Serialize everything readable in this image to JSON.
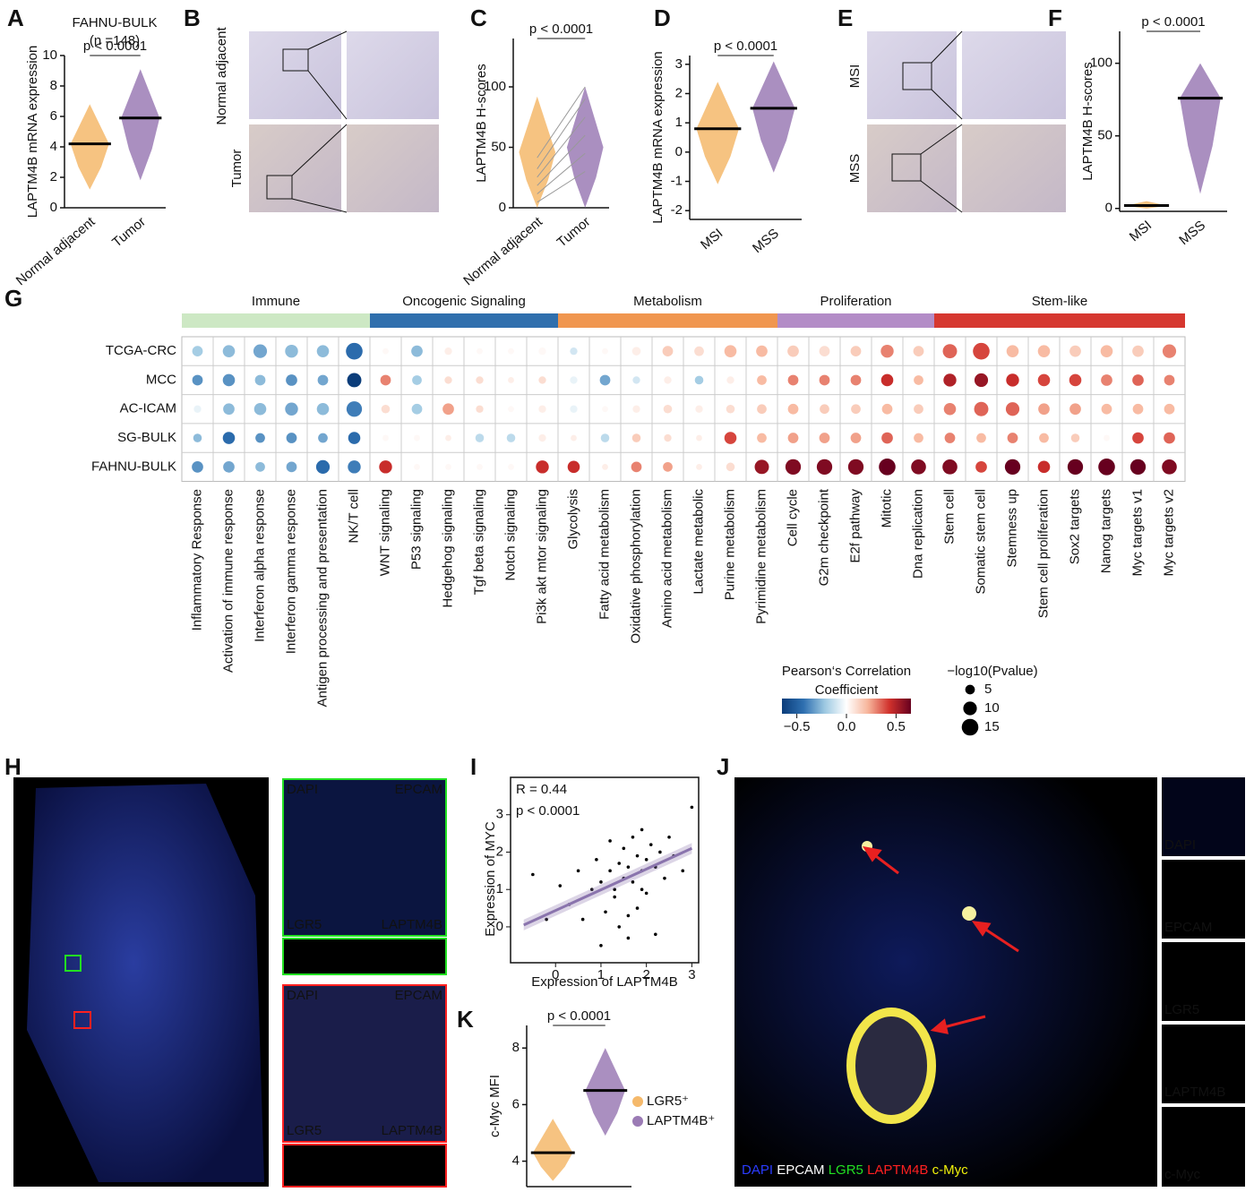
{
  "panel_labels": [
    "A",
    "B",
    "C",
    "D",
    "E",
    "F",
    "G",
    "H",
    "I",
    "J",
    "K"
  ],
  "images": {
    "B": [
      "Normal adjacent",
      "Tumor"
    ],
    "E": [
      "MSI",
      "MSS"
    ]
  },
  "channels": [
    {
      "name": "DAPI",
      "color": "#2b3cff"
    },
    {
      "name": "EPCAM",
      "color": "#ffffff"
    },
    {
      "name": "LGR5",
      "color": "#22e022"
    },
    {
      "name": "LAPTM4B",
      "color": "#ff2020"
    },
    {
      "name": "c-Myc",
      "color": "#f2f20a"
    }
  ],
  "chart_data": [
    {
      "type": "swarm",
      "title": "FAHNU-BULK",
      "subtitle": "(n =148)",
      "annotation": "p < 0.0001",
      "ylabel": "LAPTM4B mRNA expression",
      "categories": [
        "Normal adjacent",
        "Tumor"
      ],
      "colors": [
        "#f5b96b",
        "#9b7bb5"
      ],
      "medians": [
        4.2,
        5.9
      ],
      "ranges": [
        [
          1.2,
          6.8
        ],
        [
          1.8,
          9.1
        ]
      ],
      "ylim": [
        0,
        10
      ],
      "yticks": [
        0,
        2,
        4,
        6,
        8,
        10
      ]
    },
    {
      "type": "paired",
      "annotation": "p < 0.0001",
      "ylabel": "LAPTM4B H-scores",
      "categories": [
        "Normal adjacent",
        "Tumor"
      ],
      "colors": [
        "#f5b96b",
        "#9b7bb5"
      ],
      "ranges": [
        [
          0,
          92
        ],
        [
          0,
          100
        ]
      ],
      "ylim": [
        0,
        140
      ],
      "yticks": [
        0,
        50,
        100
      ]
    },
    {
      "type": "swarm",
      "annotation": "p < 0.0001",
      "ylabel": "LAPTM4B mRNA expression",
      "categories": [
        "MSI",
        "MSS"
      ],
      "colors": [
        "#f5b96b",
        "#9b7bb5"
      ],
      "medians": [
        0.8,
        1.5
      ],
      "ranges": [
        [
          -1.1,
          2.4
        ],
        [
          -0.7,
          3.1
        ]
      ],
      "ylim": [
        -2.3,
        3.3
      ],
      "yticks": [
        -2,
        -1,
        0,
        1,
        2,
        3
      ]
    },
    {
      "type": "swarm",
      "annotation": "p < 0.0001",
      "ylabel": "LAPTM4B H-scores",
      "categories": [
        "MSI",
        "MSS"
      ],
      "colors": [
        "#f5b96b",
        "#9b7bb5"
      ],
      "medians": [
        2,
        76
      ],
      "ranges": [
        [
          0,
          5
        ],
        [
          10,
          100
        ]
      ],
      "ylim": [
        -2,
        122
      ],
      "yticks": [
        0,
        50,
        100
      ]
    },
    {
      "type": "dotplot",
      "groups": [
        {
          "name": "Immune",
          "color": "#cde8c4",
          "categories": [
            "Inflammatory Response",
            "Activation of immune response",
            "Interferon alpha response",
            "Interferon gamma response",
            "Antigen processing and presentation",
            "NK/T cell"
          ]
        },
        {
          "name": "Oncogenic Signaling",
          "color": "#2f6fad",
          "categories": [
            "WNT signaling",
            "P53 signaling",
            "Hedgehog signaling",
            "Tgf beta signaling",
            "Notch signaling",
            "Pi3k akt mtor signaling"
          ]
        },
        {
          "name": "Metabolism",
          "color": "#f0964f",
          "categories": [
            "Glycolysis",
            "Fatty acid metabolism",
            "Oxidative phosphorylation",
            "Amino acid metabolism",
            "Lactate metabolic",
            "Purine metabolism",
            "Pyrimidine metabolism"
          ]
        },
        {
          "name": "Proliferation",
          "color": "#b38cc7",
          "categories": [
            "Cell cycle",
            "G2m checkpoint",
            "E2f pathway",
            "Mitotic",
            "Dna replication"
          ]
        },
        {
          "name": "Stem-like",
          "color": "#d6372f",
          "categories": [
            "Stem cell",
            "Somatic stem cell",
            "Stemness up",
            "Stem cell proliferation",
            "Sox2 targets",
            "Nanog targets",
            "Myc targets v1",
            "Myc targets v2"
          ]
        }
      ],
      "series": [
        {
          "name": "TCGA-CRC",
          "values": [
            -0.2,
            -0.25,
            -0.3,
            -0.25,
            -0.25,
            -0.45,
            0.02,
            -0.25,
            0.05,
            0.02,
            0.02,
            0.02,
            -0.1,
            0.02,
            0.05,
            0.15,
            0.1,
            0.2,
            0.2,
            0.15,
            0.1,
            0.15,
            0.3,
            0.15,
            0.35,
            0.4,
            0.2,
            0.2,
            0.15,
            0.2,
            0.15,
            0.3
          ],
          "sizes": [
            6,
            8,
            10,
            9,
            8,
            15,
            2,
            7,
            3,
            2,
            2,
            3,
            3,
            2,
            4,
            6,
            5,
            8,
            7,
            7,
            6,
            6,
            9,
            6,
            11,
            15,
            8,
            8,
            7,
            8,
            7,
            10
          ]
        },
        {
          "name": "MCC",
          "values": [
            -0.35,
            -0.35,
            -0.25,
            -0.35,
            -0.3,
            -0.65,
            0.3,
            -0.2,
            0.1,
            0.1,
            0.05,
            0.1,
            -0.05,
            -0.3,
            -0.1,
            0.05,
            -0.2,
            0.05,
            0.2,
            0.3,
            0.3,
            0.3,
            0.45,
            0.2,
            0.5,
            0.55,
            0.45,
            0.4,
            0.4,
            0.3,
            0.35,
            0.3
          ],
          "sizes": [
            6,
            8,
            6,
            7,
            6,
            11,
            6,
            5,
            3,
            3,
            2,
            3,
            3,
            6,
            3,
            3,
            4,
            3,
            5,
            6,
            6,
            6,
            8,
            5,
            9,
            10,
            9,
            8,
            8,
            7,
            7,
            6
          ]
        },
        {
          "name": "AC-ICAM",
          "values": [
            -0.05,
            -0.25,
            -0.25,
            -0.3,
            -0.25,
            -0.4,
            0.1,
            -0.2,
            0.25,
            0.1,
            0.02,
            0.05,
            -0.05,
            0.02,
            0.05,
            0.1,
            0.05,
            0.1,
            0.15,
            0.2,
            0.15,
            0.15,
            0.2,
            0.15,
            0.3,
            0.35,
            0.35,
            0.25,
            0.25,
            0.2,
            0.2,
            0.2
          ],
          "sizes": [
            3,
            7,
            8,
            9,
            8,
            13,
            4,
            6,
            7,
            3,
            2,
            3,
            3,
            2,
            3,
            4,
            3,
            4,
            5,
            6,
            5,
            5,
            6,
            5,
            8,
            11,
            10,
            7,
            7,
            6,
            6,
            6
          ]
        },
        {
          "name": "SG-BULK",
          "values": [
            -0.25,
            -0.45,
            -0.35,
            -0.35,
            -0.3,
            -0.45,
            0.02,
            0.02,
            0.05,
            -0.15,
            -0.15,
            0.05,
            0.05,
            -0.15,
            0.15,
            0.1,
            0.05,
            0.4,
            0.2,
            0.25,
            0.25,
            0.25,
            0.35,
            0.2,
            0.3,
            0.2,
            0.3,
            0.2,
            0.15,
            0.02,
            0.4,
            0.35
          ],
          "sizes": [
            4,
            8,
            5,
            6,
            5,
            8,
            2,
            2,
            2,
            4,
            4,
            3,
            2,
            4,
            4,
            3,
            2,
            8,
            5,
            6,
            6,
            6,
            7,
            5,
            6,
            5,
            6,
            5,
            4,
            2,
            7,
            7
          ]
        },
        {
          "name": "FAHNU-BULK",
          "values": [
            -0.35,
            -0.3,
            -0.25,
            -0.3,
            -0.45,
            -0.4,
            0.45,
            0.02,
            0.02,
            0.02,
            0.02,
            0.45,
            0.45,
            0.05,
            0.3,
            0.25,
            0.05,
            0.1,
            0.55,
            0.6,
            0.6,
            0.6,
            0.7,
            0.6,
            0.6,
            0.4,
            0.65,
            0.45,
            0.65,
            0.7,
            0.65,
            0.6
          ],
          "sizes": [
            7,
            7,
            5,
            6,
            10,
            9,
            9,
            2,
            2,
            2,
            2,
            9,
            8,
            2,
            6,
            5,
            2,
            4,
            11,
            13,
            13,
            13,
            15,
            12,
            12,
            7,
            13,
            8,
            13,
            15,
            13,
            12
          ]
        }
      ],
      "color_title": [
        "Pearson‘s Correlation",
        "Coefficient"
      ],
      "colormap": [
        "#0b3d7a",
        "#2e6fb0",
        "#9ec9e2",
        "#ffffff",
        "#f7b59b",
        "#d0312c",
        "#67001f"
      ],
      "clim": [
        -0.65,
        0.65
      ],
      "cticks": [
        {
          "value": -0.5,
          "label": "−0.5"
        },
        {
          "value": 0,
          "label": "0.0"
        },
        {
          "value": 0.5,
          "label": "0.5"
        }
      ],
      "size_title": "−log10(Pvalue)",
      "size_legend": [
        5,
        10,
        15
      ]
    },
    {
      "type": "scatter",
      "annotations": [
        "R = 0.44",
        "p < 0.0001"
      ],
      "xlabel": "Expression of LAPTM4B",
      "ylabel": "Expression of MYC",
      "x": [
        -0.5,
        -0.2,
        0.1,
        0.3,
        0.5,
        0.6,
        0.8,
        0.9,
        1.0,
        1.1,
        1.2,
        1.2,
        1.3,
        1.4,
        1.4,
        1.5,
        1.5,
        1.6,
        1.6,
        1.7,
        1.7,
        1.8,
        1.8,
        1.9,
        1.9,
        2.0,
        2.0,
        2.1,
        2.2,
        2.3,
        2.4,
        2.5,
        2.6,
        2.8,
        3.0,
        1.0,
        1.3,
        1.6,
        1.9,
        2.2
      ],
      "y": [
        1.4,
        0.2,
        1.1,
        0.6,
        1.5,
        0.2,
        1.0,
        1.8,
        1.2,
        0.4,
        1.5,
        2.3,
        1.0,
        1.7,
        0.0,
        1.3,
        2.1,
        -0.3,
        1.6,
        1.2,
        2.4,
        1.9,
        0.5,
        1.5,
        2.6,
        1.8,
        0.9,
        2.2,
        1.6,
        2.0,
        1.3,
        2.4,
        1.9,
        1.5,
        3.2,
        -0.5,
        0.8,
        0.3,
        1.0,
        -0.2
      ],
      "fit": {
        "x": [
          -0.7,
          3.0
        ],
        "y": [
          0.05,
          2.1
        ]
      },
      "fit_color": "#8a74ad",
      "xlim": [
        -0.99,
        3.15
      ],
      "ylim": [
        -0.96,
        4.0
      ],
      "xticks": [
        0,
        1,
        2,
        3
      ],
      "yticks": [
        0,
        1,
        2,
        3
      ]
    },
    {
      "type": "swarm",
      "annotation": "p < 0.0001",
      "ylabel": "c-Myc MFI",
      "categories": [
        "LGR5⁺",
        "LAPTM4B⁺"
      ],
      "colors": [
        "#f5b96b",
        "#9b7bb5"
      ],
      "medians": [
        4.3,
        6.5
      ],
      "ranges": [
        [
          3.3,
          5.5
        ],
        [
          4.9,
          8.0
        ]
      ],
      "ylim": [
        3.1,
        8.8
      ],
      "yticks": [
        4,
        6,
        8
      ],
      "legend": true
    }
  ]
}
